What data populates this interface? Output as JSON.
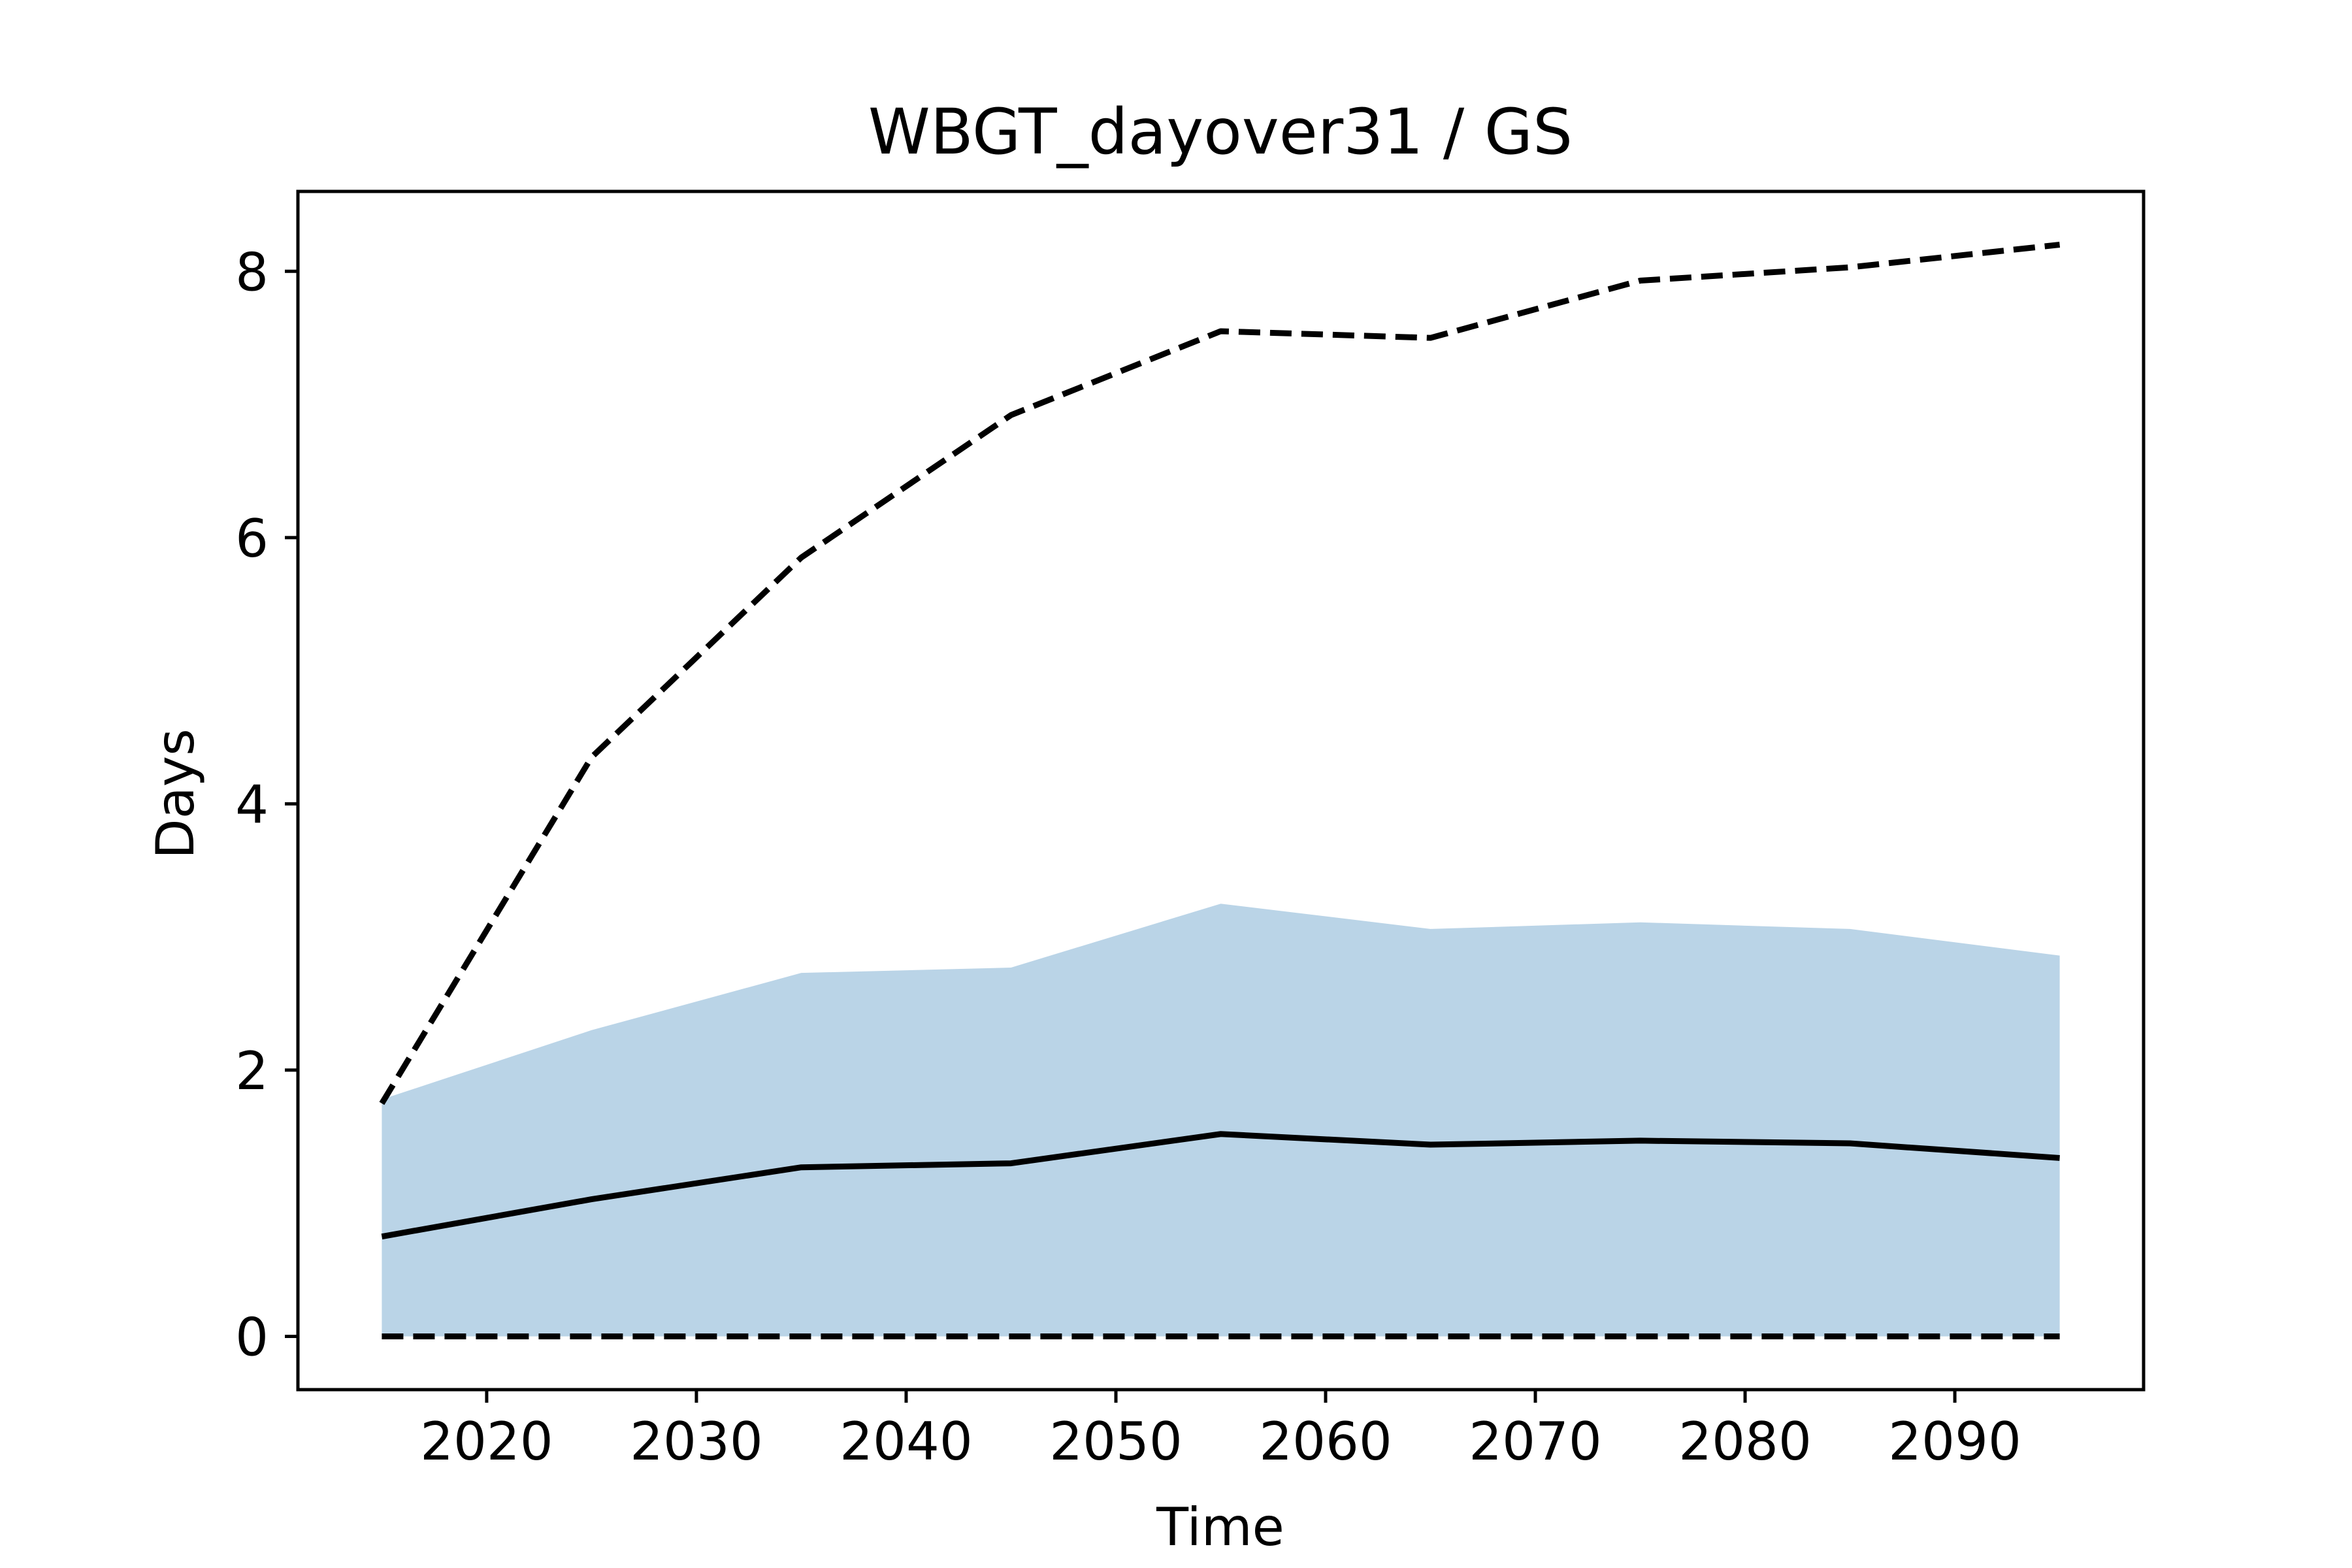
{
  "chart_data": {
    "type": "line",
    "title": "WBGT_dayover31 / GS",
    "xlabel": "Time",
    "ylabel": "Days",
    "xlim": [
      2011,
      2099
    ],
    "ylim": [
      -0.4,
      8.6
    ],
    "xticks": [
      2020,
      2030,
      2040,
      2050,
      2060,
      2070,
      2080,
      2090
    ],
    "yticks": [
      0,
      2,
      4,
      6,
      8
    ],
    "grid": false,
    "legend": "none",
    "x": [
      2015,
      2025,
      2035,
      2045,
      2055,
      2065,
      2075,
      2085,
      2095
    ],
    "series": [
      {
        "role": "mean",
        "style": "solid",
        "color": "#000000",
        "values": [
          0.75,
          1.03,
          1.27,
          1.3,
          1.52,
          1.44,
          1.47,
          1.45,
          1.34
        ]
      },
      {
        "role": "upper",
        "style": "dashed",
        "color": "#000000",
        "values": [
          1.75,
          4.35,
          5.85,
          6.92,
          7.55,
          7.5,
          7.93,
          8.03,
          8.2
        ]
      },
      {
        "role": "lower",
        "style": "dashed",
        "color": "#000000",
        "values": [
          0,
          0,
          0,
          0,
          0,
          0,
          0,
          0,
          0
        ]
      }
    ],
    "band": {
      "color": "#bad4e7",
      "lower": [
        0,
        0,
        0,
        0,
        0,
        0,
        0,
        0,
        0
      ],
      "upper": [
        1.78,
        2.3,
        2.73,
        2.77,
        3.25,
        3.06,
        3.11,
        3.06,
        2.86
      ]
    }
  }
}
